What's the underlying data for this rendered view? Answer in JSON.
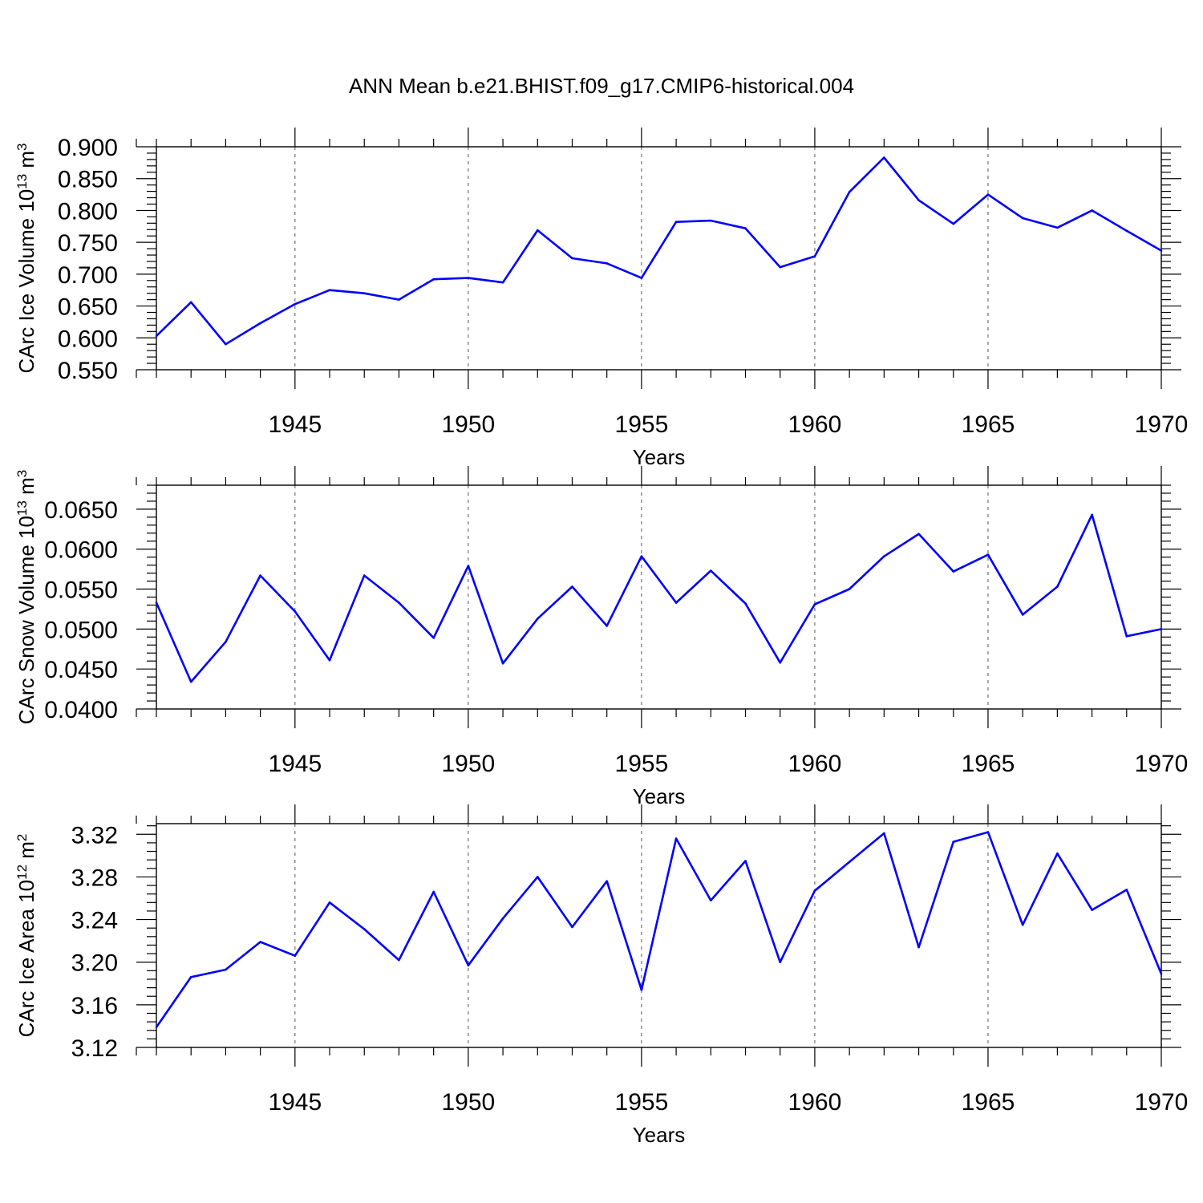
{
  "title": "ANN Mean b.e21.BHIST.f09_g17.CMIP6-historical.004",
  "line_color": "#0000ff",
  "chart_data": [
    {
      "type": "line",
      "title": "ANN Mean b.e21.BHIST.f09_g17.CMIP6-historical.004",
      "xlabel": "Years",
      "ylabel": "CArc Ice Volume 10",
      "ylabel_exp": "13",
      "ylabel_unit": " m",
      "ylabel_unit_exp": "3",
      "xlim": [
        1941,
        1970
      ],
      "ylim": [
        0.55,
        0.9
      ],
      "xticks": [
        1945,
        1950,
        1955,
        1960,
        1965,
        1970
      ],
      "xtick_labels": [
        "1945",
        "1950",
        "1955",
        "1960",
        "1965",
        "1970"
      ],
      "yticks": [
        0.55,
        0.6,
        0.65,
        0.7,
        0.75,
        0.8,
        0.85,
        0.9
      ],
      "ytick_labels": [
        "0.550",
        "0.600",
        "0.650",
        "0.700",
        "0.750",
        "0.800",
        "0.850",
        "0.900"
      ],
      "grid": "dashed vertical at major x ticks",
      "x": [
        1941,
        1942,
        1943,
        1944,
        1945,
        1946,
        1947,
        1948,
        1949,
        1950,
        1951,
        1952,
        1953,
        1954,
        1955,
        1956,
        1957,
        1958,
        1959,
        1960,
        1961,
        1962,
        1963,
        1964,
        1965,
        1966,
        1967,
        1968,
        1969,
        1970
      ],
      "values": [
        0.603,
        0.656,
        0.59,
        0.623,
        0.653,
        0.675,
        0.67,
        0.66,
        0.692,
        0.694,
        0.687,
        0.769,
        0.725,
        0.717,
        0.694,
        0.782,
        0.784,
        0.772,
        0.711,
        0.728,
        0.829,
        0.883,
        0.816,
        0.779,
        0.825,
        0.788,
        0.773,
        0.8,
        0.768,
        0.737
      ]
    },
    {
      "type": "line",
      "xlabel": "Years",
      "ylabel": "CArc Snow Volume 10",
      "ylabel_exp": "13",
      "ylabel_unit": " m",
      "ylabel_unit_exp": "3",
      "xlim": [
        1941,
        1970
      ],
      "ylim": [
        0.04,
        0.068
      ],
      "xticks": [
        1945,
        1950,
        1955,
        1960,
        1965,
        1970
      ],
      "xtick_labels": [
        "1945",
        "1950",
        "1955",
        "1960",
        "1965",
        "1970"
      ],
      "yticks": [
        0.04,
        0.045,
        0.05,
        0.055,
        0.06,
        0.065
      ],
      "ytick_labels": [
        "0.0400",
        "0.0450",
        "0.0500",
        "0.0550",
        "0.0600",
        "0.0650"
      ],
      "grid": "dashed vertical at major x ticks",
      "x": [
        1941,
        1942,
        1943,
        1944,
        1945,
        1946,
        1947,
        1948,
        1949,
        1950,
        1951,
        1952,
        1953,
        1954,
        1955,
        1956,
        1957,
        1958,
        1959,
        1960,
        1961,
        1962,
        1963,
        1964,
        1965,
        1966,
        1967,
        1968,
        1969,
        1970
      ],
      "values": [
        0.0533,
        0.0434,
        0.0484,
        0.0567,
        0.0522,
        0.0461,
        0.0567,
        0.0533,
        0.0489,
        0.0579,
        0.0457,
        0.0513,
        0.0553,
        0.0504,
        0.0591,
        0.0533,
        0.0573,
        0.0532,
        0.0458,
        0.0531,
        0.055,
        0.0591,
        0.0619,
        0.0572,
        0.0593,
        0.0518,
        0.0553,
        0.0643,
        0.0491,
        0.05
      ]
    },
    {
      "type": "line",
      "xlabel": "Years",
      "ylabel": "CArc Ice Area 10",
      "ylabel_exp": "12",
      "ylabel_unit": " m",
      "ylabel_unit_exp": "2",
      "xlim": [
        1941,
        1970
      ],
      "ylim": [
        3.12,
        3.33
      ],
      "xticks": [
        1945,
        1950,
        1955,
        1960,
        1965,
        1970
      ],
      "xtick_labels": [
        "1945",
        "1950",
        "1955",
        "1960",
        "1965",
        "1970"
      ],
      "yticks": [
        3.12,
        3.16,
        3.2,
        3.24,
        3.28,
        3.32
      ],
      "ytick_labels": [
        "3.12",
        "3.16",
        "3.20",
        "3.24",
        "3.28",
        "3.32"
      ],
      "grid": "dashed vertical at major x ticks",
      "x": [
        1941,
        1942,
        1943,
        1944,
        1945,
        1946,
        1947,
        1948,
        1949,
        1950,
        1951,
        1952,
        1953,
        1954,
        1955,
        1956,
        1957,
        1958,
        1959,
        1960,
        1961,
        1962,
        1963,
        1964,
        1965,
        1966,
        1967,
        1968,
        1969,
        1970
      ],
      "values": [
        3.139,
        3.186,
        3.193,
        3.219,
        3.206,
        3.256,
        3.231,
        3.202,
        3.266,
        3.197,
        3.241,
        3.28,
        3.233,
        3.276,
        3.174,
        3.316,
        3.258,
        3.295,
        3.2,
        3.267,
        3.294,
        3.321,
        3.214,
        3.313,
        3.322,
        3.235,
        3.302,
        3.249,
        3.268,
        3.189
      ]
    }
  ]
}
